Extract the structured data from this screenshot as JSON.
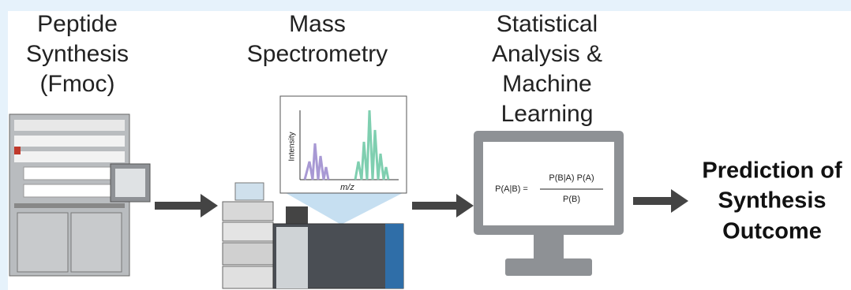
{
  "stages": [
    {
      "title_lines": [
        "Peptide",
        "Synthesis",
        "(Fmoc)"
      ]
    },
    {
      "title_lines": [
        "Mass",
        "Spectrometry"
      ],
      "plot": {
        "y_label": "Intensity",
        "x_label": "m/z"
      }
    },
    {
      "title_lines": [
        "Statistical",
        "Analysis &",
        "Machine",
        "Learning"
      ],
      "formula": {
        "lhs": "P(A|B) =",
        "numerator": "P(B|A) P(A)",
        "denominator": "P(B)"
      }
    },
    {
      "title_lines": [
        "Prediction of",
        "Synthesis",
        "Outcome"
      ]
    }
  ]
}
